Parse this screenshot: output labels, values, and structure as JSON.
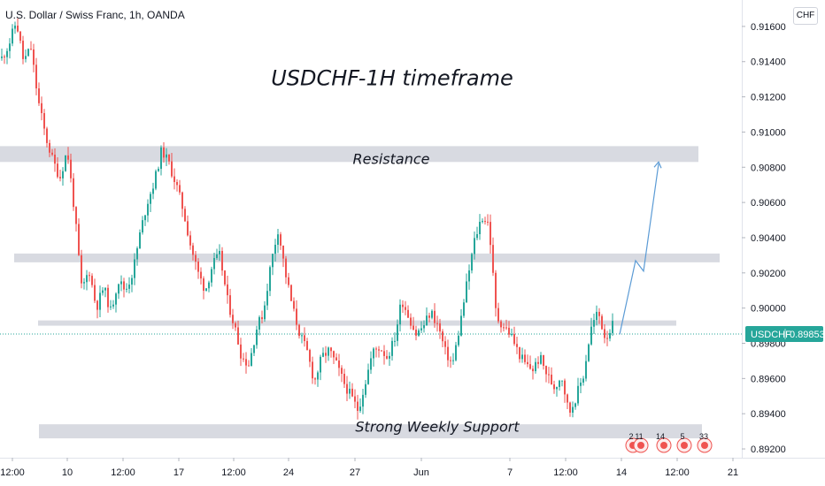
{
  "header": {
    "symbol_title": "U.S. Dollar / Swiss Franc, 1h, OANDA",
    "currency": "CHF"
  },
  "price_badge": {
    "symbol": "USDCHF",
    "price": "0.89853"
  },
  "colors": {
    "up": "#26a69a",
    "down": "#ef5350",
    "zone": "#d1d4dc",
    "arrow": "#5b9bd5",
    "badge": "#26a69a"
  },
  "event_markers": [
    "2",
    "11",
    "14",
    "5",
    "33"
  ],
  "chart_data": {
    "type": "candlestick",
    "title": "USDCHF-1H timeframe",
    "annotations": [
      {
        "text": "USDCHF-1H timeframe"
      },
      {
        "text": "Resistance"
      },
      {
        "text": "Strong Weekly Support"
      }
    ],
    "zones": [
      {
        "label": "Resistance",
        "from": 0.9083,
        "to": 0.9092
      },
      {
        "label": "",
        "from": 0.9026,
        "to": 0.9031
      },
      {
        "label": "",
        "from": 0.899,
        "to": 0.8993
      },
      {
        "label": "Strong Weekly Support",
        "from": 0.8926,
        "to": 0.8934
      }
    ],
    "current_price": 0.89853,
    "ylim": [
      0.8915,
      0.9173
    ],
    "y_ticks": [
      "0.91600",
      "0.91400",
      "0.91200",
      "0.91000",
      "0.90800",
      "0.90600",
      "0.90400",
      "0.90200",
      "0.90000",
      "0.89800",
      "0.89600",
      "0.89400",
      "0.89200"
    ],
    "x_ticks": [
      "12:00",
      "10",
      "12:00",
      "17",
      "12:00",
      "24",
      "27",
      "Jun",
      "7",
      "12:00",
      "14",
      "12:00",
      "21"
    ],
    "projection": [
      [
        0.8985,
        0.8985
      ],
      [
        0.9027,
        0.9021
      ],
      [
        0.9082,
        0.9082
      ]
    ],
    "price_path": [
      0.9142,
      0.915,
      0.9163,
      0.914,
      0.9148,
      0.9118,
      0.9098,
      0.9084,
      0.9074,
      0.909,
      0.9055,
      0.901,
      0.9022,
      0.9,
      0.9012,
      0.8998,
      0.9016,
      0.901,
      0.902,
      0.9042,
      0.906,
      0.9072,
      0.909,
      0.9082,
      0.907,
      0.9055,
      0.9035,
      0.902,
      0.901,
      0.9025,
      0.903,
      0.9005,
      0.899,
      0.8972,
      0.8968,
      0.8988,
      0.8998,
      0.9025,
      0.9045,
      0.902,
      0.9,
      0.8985,
      0.8975,
      0.8958,
      0.8972,
      0.8976,
      0.8968,
      0.8958,
      0.895,
      0.8942,
      0.8958,
      0.8975,
      0.8978,
      0.8972,
      0.8982,
      0.9005,
      0.8995,
      0.8985,
      0.899,
      0.8998,
      0.899,
      0.8975,
      0.8968,
      0.899,
      0.9015,
      0.9038,
      0.9052,
      0.9048,
      0.8995,
      0.899,
      0.8985,
      0.8975,
      0.8968,
      0.8965,
      0.8972,
      0.8962,
      0.8955,
      0.8962,
      0.894,
      0.895,
      0.8962,
      0.8988,
      0.8998,
      0.8983,
      0.899
    ]
  }
}
